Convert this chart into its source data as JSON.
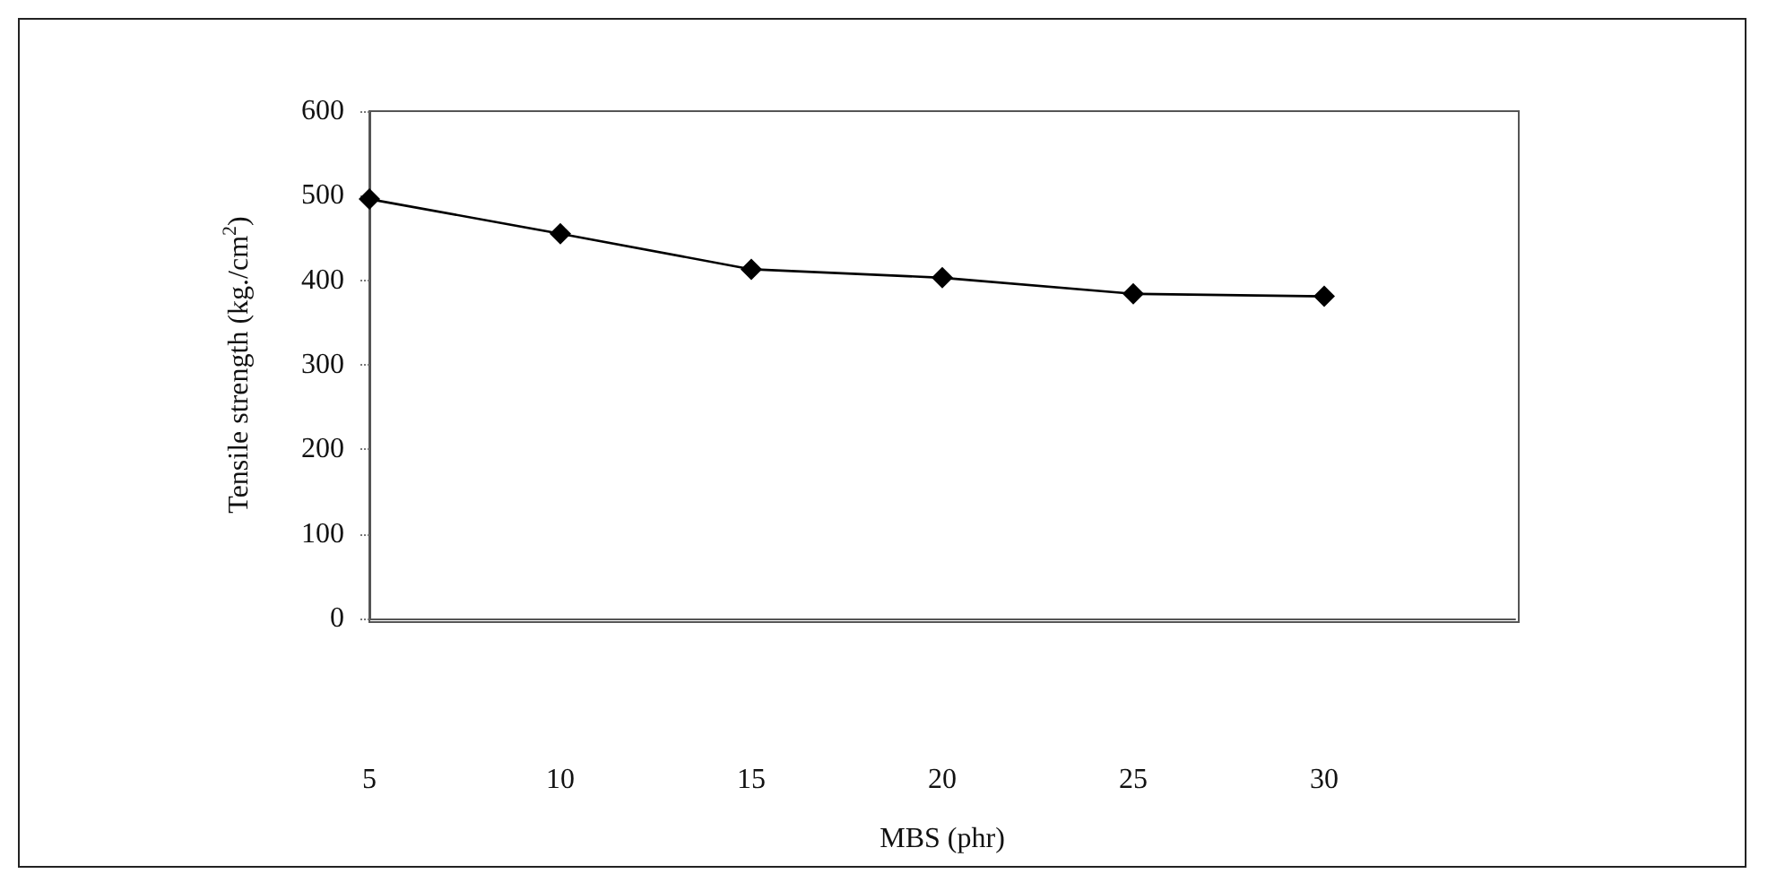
{
  "chart_data": {
    "type": "line",
    "xlabel": "MBS (phr)",
    "ylabel": "Tensile strength (kg./cm$^{2}$)",
    "x": [
      5,
      10,
      15,
      20,
      25,
      30
    ],
    "series": [
      {
        "color": "#000000",
        "values": [
          496,
          455,
          413,
          403,
          384,
          381
        ]
      }
    ],
    "xlim": [
      5,
      35
    ],
    "xticks": [
      5,
      10,
      15,
      20,
      25,
      30
    ],
    "ylim": [
      0,
      600
    ],
    "yticks": [
      0,
      100,
      200,
      300,
      400,
      500,
      600
    ],
    "grid": false,
    "marker": "diamond",
    "line_style": "solid"
  }
}
